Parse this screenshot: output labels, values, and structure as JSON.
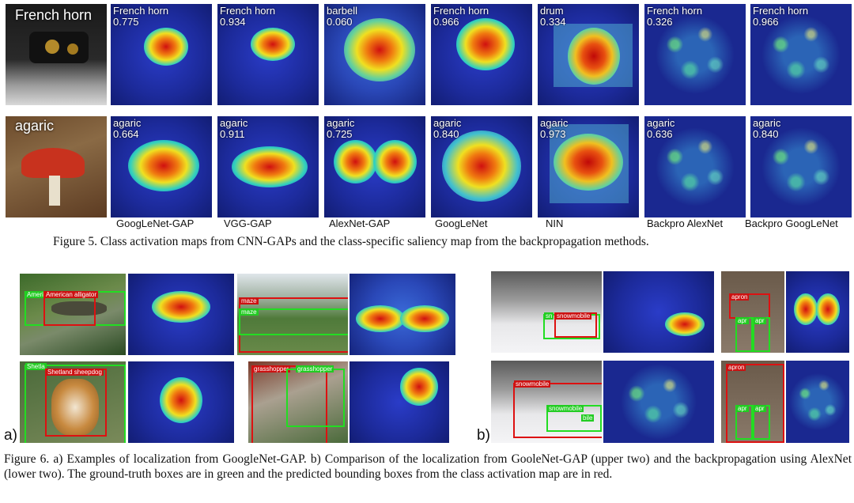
{
  "fig5": {
    "rows": [
      {
        "label": "French horn",
        "cells": [
          {
            "cls": "French horn",
            "score": "0.775"
          },
          {
            "cls": "French horn",
            "score": "0.934"
          },
          {
            "cls": "barbell",
            "score": "0.060"
          },
          {
            "cls": "French horn",
            "score": "0.966"
          },
          {
            "cls": "drum",
            "score": "0.334"
          },
          {
            "cls": "French horn",
            "score": "0.326"
          },
          {
            "cls": "French horn",
            "score": "0.966"
          }
        ]
      },
      {
        "label": "agaric",
        "cells": [
          {
            "cls": "agaric",
            "score": "0.664"
          },
          {
            "cls": "agaric",
            "score": "0.911"
          },
          {
            "cls": "agaric",
            "score": "0.725"
          },
          {
            "cls": "agaric",
            "score": "0.840"
          },
          {
            "cls": "agaric",
            "score": "0.973"
          },
          {
            "cls": "agaric",
            "score": "0.636"
          },
          {
            "cls": "agaric",
            "score": "0.840"
          }
        ]
      }
    ],
    "methods": [
      "GoogLeNet-GAP",
      "VGG-GAP",
      "AlexNet-GAP",
      "GoogLeNet",
      "NIN",
      "Backpro AlexNet",
      "Backpro GoogLeNet"
    ],
    "caption": "Figure 5. Class activation maps from CNN-GAPs and the class-specific saliency map from the backpropagation methods."
  },
  "fig6": {
    "panel_a_label": "a)",
    "panel_b_label": "b)",
    "tags": {
      "alligator_gt": "Ameri",
      "alligator_pred": "American alligator",
      "maze_pred": "maze",
      "maze_gt": "maze",
      "sheepdog_gt": "Shetla",
      "sheepdog_pred": "Shetland sheepdog",
      "grasshopper_pred": "grasshopper",
      "grasshopper_gt": "grasshopper",
      "snow1_gt": "sn",
      "snow1_pred": "snowmobile",
      "snow1_gt2": "",
      "apron1_pred": "apron",
      "apron1_gt": "apr",
      "apron1_gt2": "apr",
      "snow2_pred": "snowmobile",
      "snow2_gt": "snowmobile",
      "snow2_gt2": "bile",
      "apron2_pred": "apron",
      "apron2_gt": "apr",
      "apron2_gt2": "apr"
    },
    "caption": "Figure 6. a) Examples of localization from GoogleNet-GAP. b) Comparison of the localization from GooleNet-GAP (upper two) and the backpropagation using AlexNet (lower two). The ground-truth boxes are in green and the predicted bounding boxes from the class activation map are in red."
  }
}
